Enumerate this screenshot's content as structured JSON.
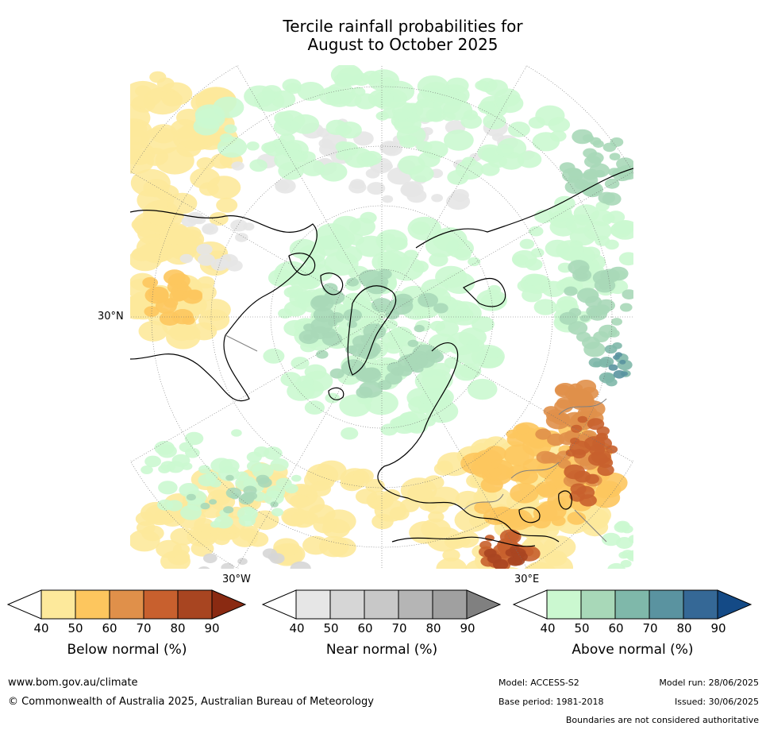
{
  "title_line1": "Tercile rainfall probabilities for",
  "title_line2": "August to October 2025",
  "map": {
    "lat_label": "30°N",
    "lon_label_west": "30°W",
    "lon_label_east": "30°E",
    "colors": {
      "ocean_bg": "#ffffff",
      "coast": "#000000",
      "border": "#808080",
      "grid": "#707070"
    }
  },
  "legends": {
    "ticks": [
      "40",
      "50",
      "60",
      "70",
      "80",
      "90"
    ],
    "below": {
      "label": "Below normal (%)",
      "colors": [
        "#ffffff",
        "#fde99b",
        "#fdc65e",
        "#e0904a",
        "#c8602e",
        "#a84521",
        "#8a2a12"
      ]
    },
    "near": {
      "label": "Near normal (%)",
      "colors": [
        "#ffffff",
        "#e6e6e6",
        "#d6d6d6",
        "#c8c8c8",
        "#b5b5b5",
        "#a0a0a0",
        "#808080"
      ]
    },
    "above": {
      "label": "Above normal (%)",
      "colors": [
        "#ffffff",
        "#cbf8d0",
        "#a8d8b8",
        "#7fb8aa",
        "#5a93a0",
        "#356896",
        "#144a86"
      ]
    }
  },
  "footer": {
    "website": "www.bom.gov.au/climate",
    "copyright": "© Commonwealth of Australia 2025, Australian Bureau of Meteorology",
    "model": "Model: ACCESS-S2",
    "base_period": "Base period: 1981-2018",
    "model_run": "Model run: 28/06/2025",
    "issued": "Issued: 30/06/2025",
    "disclaimer": "Boundaries are not considered authoritative"
  }
}
